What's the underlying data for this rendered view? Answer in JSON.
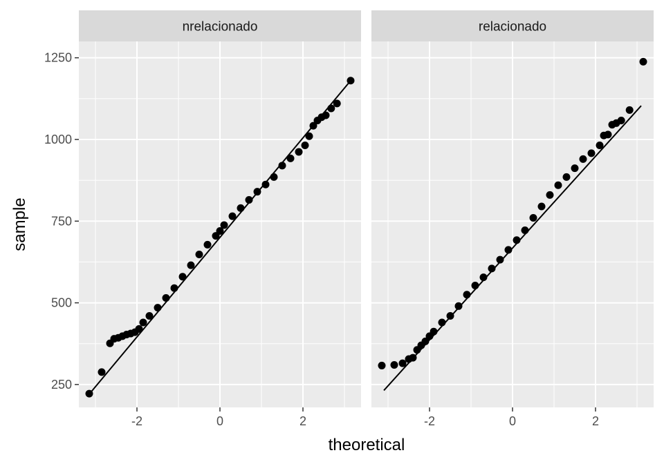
{
  "chart_data": {
    "type": "scatter",
    "title": "",
    "xlabel": "theoretical",
    "ylabel": "sample",
    "xlim": [
      -3.4,
      3.4
    ],
    "ylim": [
      180,
      1300
    ],
    "x_ticks": [
      -2,
      0,
      2
    ],
    "x_tick_labels": [
      "-2",
      "0",
      "2"
    ],
    "y_ticks": [
      250,
      500,
      750,
      1000,
      1250
    ],
    "y_tick_labels": [
      "250",
      "500",
      "750",
      "1000",
      "1250"
    ],
    "grid": true,
    "panels": [
      {
        "label": "nrelacionado",
        "line": {
          "x": [
            -3.1,
            3.15
          ],
          "y": [
            228,
            1180
          ]
        },
        "points": {
          "x": [
            -3.15,
            -2.85,
            -2.65,
            -2.55,
            -2.45,
            -2.35,
            -2.25,
            -2.15,
            -2.05,
            -1.95,
            -1.85,
            -1.7,
            -1.5,
            -1.3,
            -1.1,
            -0.9,
            -0.7,
            -0.5,
            -0.3,
            -0.1,
            0.0,
            0.1,
            0.3,
            0.5,
            0.7,
            0.9,
            1.1,
            1.3,
            1.5,
            1.7,
            1.9,
            2.05,
            2.15,
            2.25,
            2.35,
            2.45,
            2.55,
            2.68,
            2.82,
            3.15
          ],
          "y": [
            222,
            288,
            376,
            390,
            393,
            398,
            403,
            406,
            410,
            420,
            440,
            460,
            485,
            515,
            545,
            580,
            615,
            648,
            678,
            705,
            720,
            738,
            765,
            790,
            815,
            840,
            862,
            885,
            920,
            942,
            962,
            982,
            1010,
            1042,
            1058,
            1068,
            1074,
            1095,
            1110,
            1180
          ]
        }
      },
      {
        "label": "relacionado",
        "line": {
          "x": [
            -3.1,
            3.1
          ],
          "y": [
            232,
            1103
          ]
        },
        "points": {
          "x": [
            -3.15,
            -2.85,
            -2.65,
            -2.5,
            -2.4,
            -2.3,
            -2.2,
            -2.1,
            -2.0,
            -1.9,
            -1.7,
            -1.5,
            -1.3,
            -1.1,
            -0.9,
            -0.7,
            -0.5,
            -0.3,
            -0.1,
            0.1,
            0.3,
            0.5,
            0.7,
            0.9,
            1.1,
            1.3,
            1.5,
            1.7,
            1.9,
            2.1,
            2.2,
            2.3,
            2.4,
            2.5,
            2.62,
            2.82,
            3.15
          ],
          "y": [
            308,
            310,
            315,
            328,
            332,
            356,
            370,
            382,
            398,
            412,
            440,
            460,
            490,
            525,
            553,
            578,
            605,
            632,
            662,
            692,
            722,
            760,
            795,
            830,
            860,
            885,
            912,
            940,
            958,
            982,
            1012,
            1015,
            1045,
            1050,
            1058,
            1090,
            1238
          ]
        }
      }
    ]
  }
}
